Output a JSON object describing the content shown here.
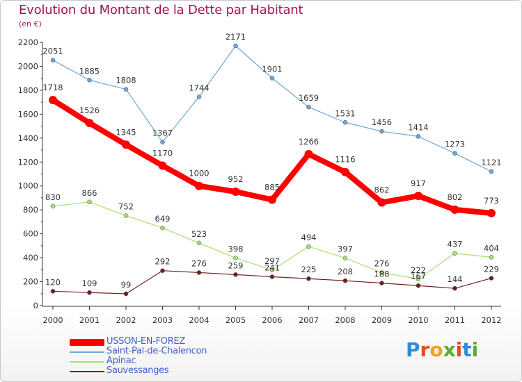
{
  "title": "Evolution du Montant de la Dette par Habitant",
  "subtitle": "(en €)",
  "logo": {
    "text": "Proxiti",
    "colors": [
      "#2f8bd6",
      "#e84b1a",
      "#f0a020",
      "#56b030",
      "#e84b1a",
      "#2f8bd6",
      "#56b030"
    ]
  },
  "chart_data": {
    "type": "line",
    "x": [
      "2000",
      "2001",
      "2002",
      "2003",
      "2004",
      "2005",
      "2006",
      "2007",
      "2008",
      "2009",
      "2010",
      "2011",
      "2012"
    ],
    "ylim": [
      0,
      2200
    ],
    "yticks": [
      "0",
      "200",
      "400",
      "600",
      "800",
      "1000",
      "1200",
      "1400",
      "1600",
      "1800",
      "2000",
      "2200"
    ],
    "grid": false,
    "legend_position": "bottom-left",
    "series": [
      {
        "name": "USSON-EN-FOREZ",
        "color": "#ff0000",
        "values": [
          1718,
          1526,
          1345,
          1170,
          1000,
          952,
          885,
          1266,
          1116,
          862,
          917,
          802,
          773
        ]
      },
      {
        "name": "Saint-Pal-de-Chalencon",
        "color": "#6ea6d8",
        "values": [
          2051,
          1885,
          1808,
          1367,
          1744,
          2171,
          1901,
          1659,
          1531,
          1456,
          1414,
          1273,
          1121
        ]
      },
      {
        "name": "Apinac",
        "color": "#a8e070",
        "values": [
          830,
          866,
          752,
          649,
          523,
          398,
          297,
          494,
          397,
          276,
          222,
          437,
          404
        ]
      },
      {
        "name": "Sauvessanges",
        "color": "#702020",
        "values": [
          120,
          109,
          99,
          292,
          276,
          259,
          241,
          225,
          208,
          188,
          167,
          144,
          229
        ]
      }
    ]
  }
}
